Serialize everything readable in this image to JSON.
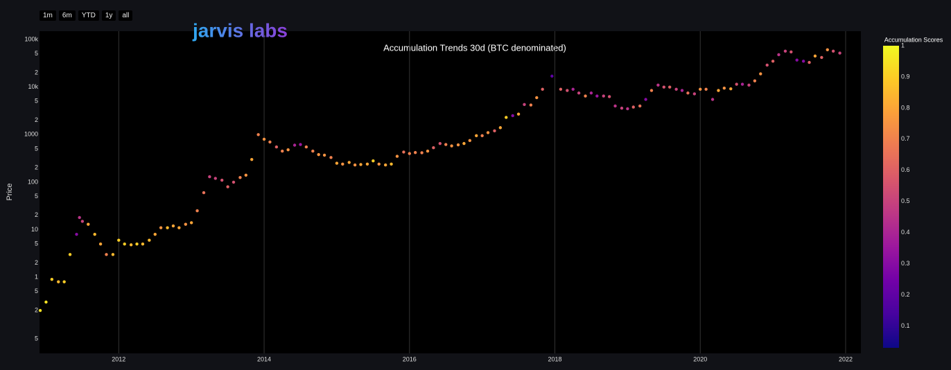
{
  "buttons": [
    "1m",
    "6m",
    "YTD",
    "1y",
    "all"
  ],
  "logo": "jarvis labs",
  "chart_data": {
    "type": "scatter",
    "title": "Accumulation Trends 30d (BTC denominated)",
    "y_label": "Price",
    "log_y": true,
    "grid": true,
    "colorbar_title": "Accumulation Scores",
    "colorscale": [
      "#0d0887",
      "#46039f",
      "#7201a8",
      "#9c179e",
      "#bd3786",
      "#d8576b",
      "#ed7953",
      "#fb9f3a",
      "#fdca26",
      "#f0f921"
    ],
    "clim": [
      0.03,
      1
    ],
    "cticks": [
      0.1,
      0.2,
      0.3,
      0.4,
      0.5,
      0.6,
      0.7,
      0.8,
      0.9,
      1
    ],
    "xlim": [
      2010.91,
      2022.21
    ],
    "xticks": [
      2012,
      2014,
      2016,
      2018,
      2020,
      2022
    ],
    "ylim": [
      0.025,
      150000
    ],
    "yticks": [
      {
        "value": 100000,
        "label": "100k"
      },
      {
        "value": 50000,
        "label": "5"
      },
      {
        "value": 20000,
        "label": "2"
      },
      {
        "value": 10000,
        "label": "10k"
      },
      {
        "value": 5000,
        "label": "5"
      },
      {
        "value": 2000,
        "label": "2"
      },
      1000,
      {
        "value": 500,
        "label": "5"
      },
      {
        "value": 200,
        "label": "2"
      },
      100,
      {
        "value": 50,
        "label": "5"
      },
      {
        "value": 20,
        "label": "2"
      },
      10,
      5,
      2,
      1,
      {
        "value": 0.5,
        "label": "5"
      },
      {
        "value": 0.2,
        "label": "2"
      },
      {
        "value": 0.05,
        "label": "5"
      }
    ],
    "x": [
      2010.92,
      2011.0,
      2011.08,
      2011.17,
      2011.25,
      2011.33,
      2011.42,
      2011.46,
      2011.5,
      2011.58,
      2011.67,
      2011.75,
      2011.83,
      2011.92,
      2012.0,
      2012.08,
      2012.17,
      2012.25,
      2012.33,
      2012.42,
      2012.5,
      2012.58,
      2012.67,
      2012.75,
      2012.83,
      2012.92,
      2013.0,
      2013.08,
      2013.17,
      2013.25,
      2013.33,
      2013.42,
      2013.5,
      2013.58,
      2013.67,
      2013.75,
      2013.83,
      2013.92,
      2014.0,
      2014.08,
      2014.17,
      2014.25,
      2014.33,
      2014.42,
      2014.5,
      2014.58,
      2014.67,
      2014.75,
      2014.83,
      2014.92,
      2015.0,
      2015.08,
      2015.17,
      2015.25,
      2015.33,
      2015.42,
      2015.5,
      2015.58,
      2015.67,
      2015.75,
      2015.83,
      2015.92,
      2016.0,
      2016.08,
      2016.17,
      2016.25,
      2016.33,
      2016.42,
      2016.5,
      2016.58,
      2016.67,
      2016.75,
      2016.83,
      2016.92,
      2017.0,
      2017.08,
      2017.17,
      2017.25,
      2017.33,
      2017.42,
      2017.5,
      2017.58,
      2017.67,
      2017.75,
      2017.83,
      2017.96,
      2018.08,
      2018.17,
      2018.25,
      2018.33,
      2018.42,
      2018.5,
      2018.58,
      2018.67,
      2018.75,
      2018.83,
      2018.92,
      2019.0,
      2019.08,
      2019.17,
      2019.25,
      2019.33,
      2019.42,
      2019.5,
      2019.58,
      2019.67,
      2019.75,
      2019.83,
      2019.92,
      2020.0,
      2020.08,
      2020.17,
      2020.25,
      2020.33,
      2020.42,
      2020.5,
      2020.58,
      2020.67,
      2020.75,
      2020.83,
      2020.92,
      2021.0,
      2021.08,
      2021.17,
      2021.25,
      2021.33,
      2021.42,
      2021.5,
      2021.58,
      2021.67,
      2021.75,
      2021.83,
      2021.92
    ],
    "values": [
      0.2,
      0.3,
      0.9,
      0.8,
      0.8,
      3,
      8,
      18,
      15,
      13,
      8,
      5,
      3,
      3,
      6,
      5,
      4.8,
      5,
      5,
      6,
      8,
      11,
      11,
      12,
      11,
      13,
      14,
      25,
      60,
      130,
      120,
      110,
      80,
      100,
      125,
      140,
      300,
      1000,
      800,
      700,
      550,
      450,
      480,
      600,
      620,
      550,
      450,
      380,
      370,
      330,
      250,
      240,
      260,
      230,
      235,
      240,
      280,
      240,
      230,
      240,
      350,
      430,
      400,
      420,
      415,
      450,
      530,
      650,
      620,
      580,
      610,
      650,
      750,
      950,
      950,
      1100,
      1200,
      1400,
      2300,
      2500,
      2700,
      4300,
      4200,
      6000,
      9000,
      17000,
      9000,
      8500,
      9000,
      7500,
      6500,
      7500,
      6500,
      6500,
      6300,
      4000,
      3600,
      3500,
      3800,
      4000,
      5500,
      8500,
      11000,
      10000,
      10000,
      9000,
      8500,
      7500,
      7200,
      9000,
      9000,
      5500,
      8500,
      9500,
      9200,
      11500,
      11500,
      11000,
      13500,
      19000,
      29000,
      35000,
      48000,
      57000,
      55000,
      37000,
      35000,
      33000,
      45000,
      42000,
      61000,
      57000,
      52000
    ],
    "scores": [
      0.95,
      0.95,
      0.9,
      0.85,
      0.9,
      0.9,
      0.3,
      0.45,
      0.5,
      0.8,
      0.85,
      0.8,
      0.7,
      0.85,
      0.9,
      0.9,
      0.85,
      0.9,
      0.85,
      0.85,
      0.8,
      0.75,
      0.85,
      0.8,
      0.8,
      0.75,
      0.8,
      0.7,
      0.65,
      0.5,
      0.5,
      0.55,
      0.6,
      0.55,
      0.7,
      0.75,
      0.8,
      0.7,
      0.75,
      0.7,
      0.6,
      0.7,
      0.75,
      0.4,
      0.35,
      0.7,
      0.7,
      0.75,
      0.75,
      0.7,
      0.8,
      0.75,
      0.8,
      0.75,
      0.8,
      0.8,
      0.9,
      0.75,
      0.8,
      0.85,
      0.75,
      0.65,
      0.7,
      0.7,
      0.7,
      0.75,
      0.6,
      0.55,
      0.7,
      0.75,
      0.75,
      0.8,
      0.75,
      0.8,
      0.7,
      0.75,
      0.6,
      0.8,
      0.9,
      0.3,
      0.8,
      0.5,
      0.7,
      0.75,
      0.6,
      0.2,
      0.6,
      0.55,
      0.4,
      0.5,
      0.7,
      0.4,
      0.35,
      0.5,
      0.55,
      0.45,
      0.5,
      0.45,
      0.6,
      0.65,
      0.3,
      0.7,
      0.45,
      0.55,
      0.6,
      0.5,
      0.4,
      0.65,
      0.5,
      0.75,
      0.7,
      0.45,
      0.8,
      0.75,
      0.8,
      0.55,
      0.4,
      0.5,
      0.7,
      0.75,
      0.55,
      0.6,
      0.45,
      0.5,
      0.55,
      0.3,
      0.3,
      0.6,
      0.8,
      0.6,
      0.75,
      0.55,
      0.5
    ]
  }
}
